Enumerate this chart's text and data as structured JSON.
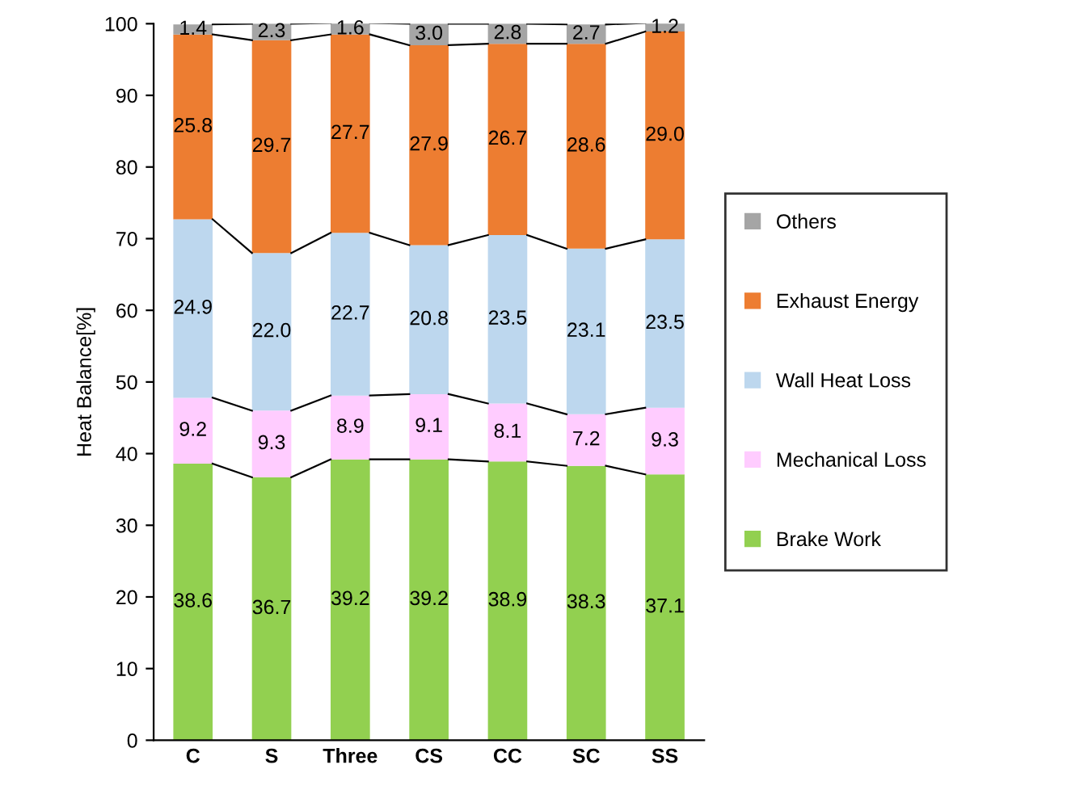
{
  "chart_data": {
    "type": "bar",
    "stacked": true,
    "ylabel": "Heat Balance[%]",
    "categories": [
      "C",
      "S",
      "Three",
      "CS",
      "CC",
      "SC",
      "SS"
    ],
    "series": [
      {
        "name": "Brake Work",
        "color": "#92d050",
        "values": [
          38.6,
          36.7,
          39.2,
          39.2,
          38.9,
          38.3,
          37.1
        ],
        "value_labels": [
          "38.6",
          "36.7",
          "39.2",
          "39.2",
          "38.9",
          "38.3",
          "37.1"
        ]
      },
      {
        "name": "Mechanical Loss",
        "color": "#ffccff",
        "values": [
          9.2,
          9.3,
          8.9,
          9.1,
          8.1,
          7.2,
          9.3
        ],
        "value_labels": [
          "9.2",
          "9.3",
          "8.9",
          "9.1",
          "8.1",
          "7.2",
          "9.3"
        ]
      },
      {
        "name": "Wall Heat Loss",
        "color": "#bdd7ee",
        "values": [
          24.9,
          22.0,
          22.7,
          20.8,
          23.5,
          23.1,
          23.5
        ],
        "value_labels": [
          "24.9",
          "22.0",
          "22.7",
          "20.8",
          "23.5",
          "23.1",
          "23.5"
        ]
      },
      {
        "name": "Exhaust Energy",
        "color": "#ed7d31",
        "values": [
          25.8,
          29.7,
          27.7,
          27.9,
          26.7,
          28.6,
          29.0
        ],
        "value_labels": [
          "25.8",
          "29.7",
          "27.7",
          "27.9",
          "26.7",
          "28.6",
          "29.0"
        ]
      },
      {
        "name": "Others",
        "color": "#a5a5a5",
        "values": [
          1.4,
          2.3,
          1.6,
          3.0,
          2.8,
          2.7,
          1.2
        ],
        "value_labels": [
          "1.4",
          "2.3",
          "1.6",
          "3.0",
          "2.8",
          "2.7",
          "1.2"
        ]
      }
    ],
    "ylim": [
      0,
      100
    ],
    "yticks": [
      0,
      10,
      20,
      30,
      40,
      50,
      60,
      70,
      80,
      90,
      100
    ],
    "grid": false,
    "legend": "right"
  }
}
